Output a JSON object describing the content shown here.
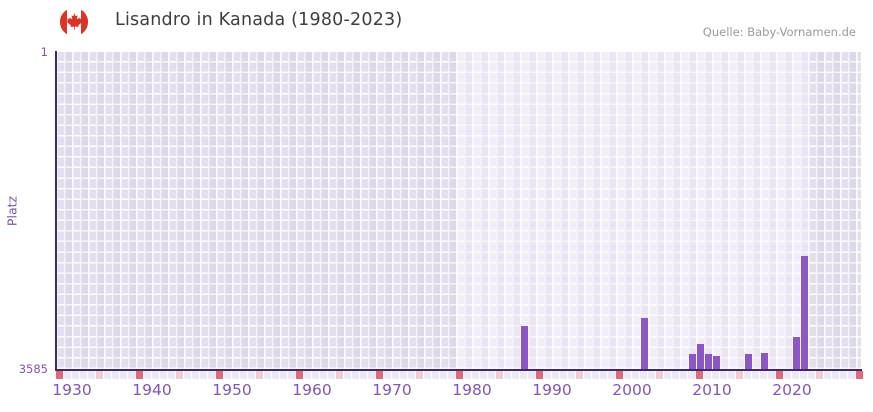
{
  "header": {
    "title": "Lisandro in Kanada (1980-2023)",
    "source": "Quelle: Baby-Vornamen.de",
    "flag_icon": "canada-flag-icon"
  },
  "chart_data": {
    "type": "bar",
    "title": "Lisandro in Kanada (1980-2023)",
    "xlabel": "",
    "ylabel": "Platz",
    "y_axis": {
      "min": 1,
      "max": 3585,
      "inverted": true,
      "top_tick_label": "1",
      "bottom_tick_label": "3585"
    },
    "x_axis": {
      "range": [
        1928,
        2029
      ],
      "tick_years": [
        1930,
        1940,
        1950,
        1960,
        1970,
        1980,
        1990,
        2000,
        2010,
        2020
      ]
    },
    "data_region": {
      "from": 1978,
      "to": 2022
    },
    "bars": [
      {
        "year": 1986,
        "rank": 3094
      },
      {
        "year": 2001,
        "rank": 3004
      },
      {
        "year": 2007,
        "rank": 3410
      },
      {
        "year": 2008,
        "rank": 3297
      },
      {
        "year": 2009,
        "rank": 3416
      },
      {
        "year": 2010,
        "rank": 3433
      },
      {
        "year": 2014,
        "rank": 3421
      },
      {
        "year": 2016,
        "rank": 3399
      },
      {
        "year": 2020,
        "rank": 3218
      },
      {
        "year": 2021,
        "rank": 2304
      }
    ],
    "axis_strip": {
      "red_marker_years_ending_in": 8,
      "pink_marker_years_ending_in": 3
    },
    "legend": null,
    "grid": true
  },
  "colors": {
    "bar": "#8a57c5",
    "axis_line": "#3d2a6e",
    "tick_text": "#7e57b2",
    "title_text": "#3f3f3f",
    "source_text": "#9a9a9a",
    "plot_bg_light": "#f1edf9",
    "plot_bg_gray": "#e3dfec",
    "gridline": "#ffffff",
    "strip_default": "#ece9f5",
    "strip_pink": "#f3cbd5",
    "strip_red": "#e0687a",
    "flag_red": "#d93427"
  }
}
